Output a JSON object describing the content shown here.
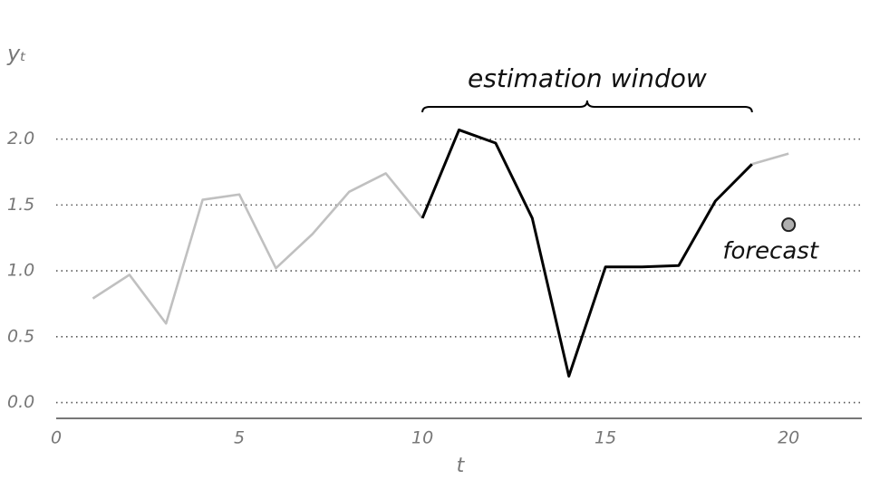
{
  "chart_data": {
    "type": "line",
    "ylabel": "yₜ",
    "xlabel": "t",
    "x": [
      1,
      2,
      3,
      4,
      5,
      6,
      7,
      8,
      9,
      10,
      11,
      12,
      13,
      14,
      15,
      16,
      17,
      18,
      19,
      20
    ],
    "series": [
      {
        "color": "#c0c0c0",
        "values": [
          0.79,
          0.97,
          0.6,
          1.54,
          1.58,
          1.02,
          1.28,
          1.6,
          1.74,
          1.4,
          null,
          null,
          null,
          null,
          null,
          null,
          null,
          null,
          1.81,
          1.89
        ]
      },
      {
        "color": "#000000",
        "values": [
          null,
          null,
          null,
          null,
          null,
          null,
          null,
          null,
          null,
          1.4,
          2.07,
          1.97,
          1.4,
          0.2,
          1.03,
          1.03,
          1.04,
          1.53,
          1.81,
          null
        ]
      }
    ],
    "forecast": {
      "x": 20,
      "y": 1.35,
      "label": "forecast",
      "color": "#b0b0b0"
    },
    "annotation": {
      "text": "estimation window",
      "start": 10,
      "end": 19
    },
    "xlim": [
      0,
      22
    ],
    "ylim": [
      -0.12,
      2.3
    ],
    "xticks": [
      0,
      5,
      10,
      15,
      20
    ],
    "yticks": [
      {
        "value": 0,
        "label": "0.0"
      },
      {
        "value": 0.5,
        "label": "0.5"
      },
      {
        "value": 1,
        "label": "1.0"
      },
      {
        "value": 1.5,
        "label": "1.5"
      },
      {
        "value": 2,
        "label": "2.0"
      }
    ],
    "grid": true
  }
}
